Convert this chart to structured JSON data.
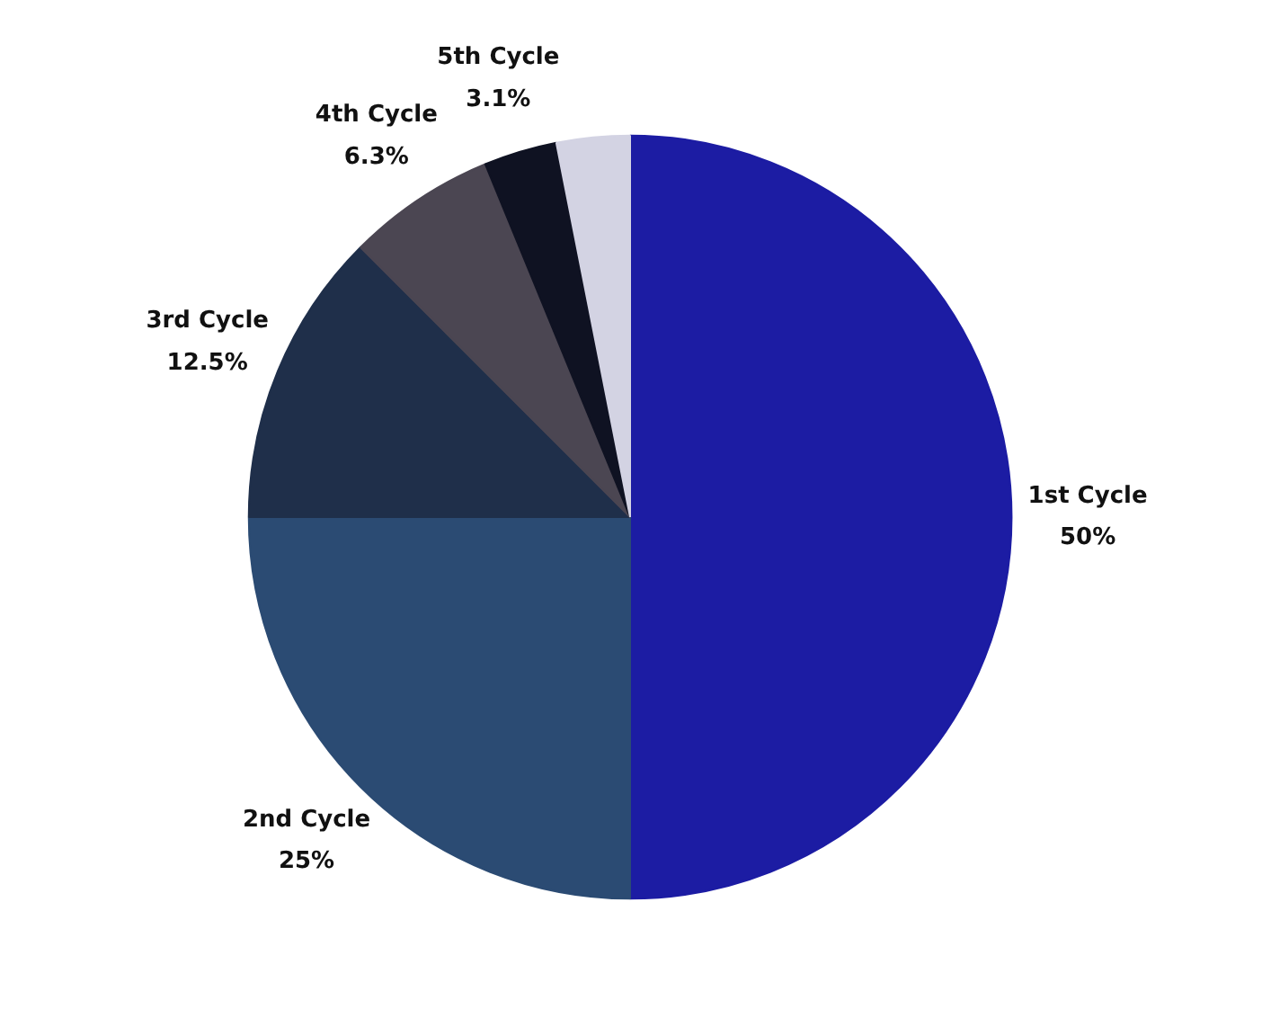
{
  "chart_data": {
    "type": "pie",
    "categories": [
      "1st Cycle",
      "2nd Cycle",
      "3rd Cycle",
      "4th Cycle",
      "5th Cycle",
      null
    ],
    "values": [
      50,
      25,
      12.5,
      6.3,
      3.1,
      3.1
    ],
    "value_labels": [
      "50%",
      "25%",
      "12.5%",
      "6.3%",
      "3.1%",
      null
    ],
    "colors": [
      "#1c1ca3",
      "#2b4b73",
      "#1f2f4a",
      "#4b4652",
      "#0f1222",
      "#d3d3e3"
    ],
    "legend": false
  }
}
